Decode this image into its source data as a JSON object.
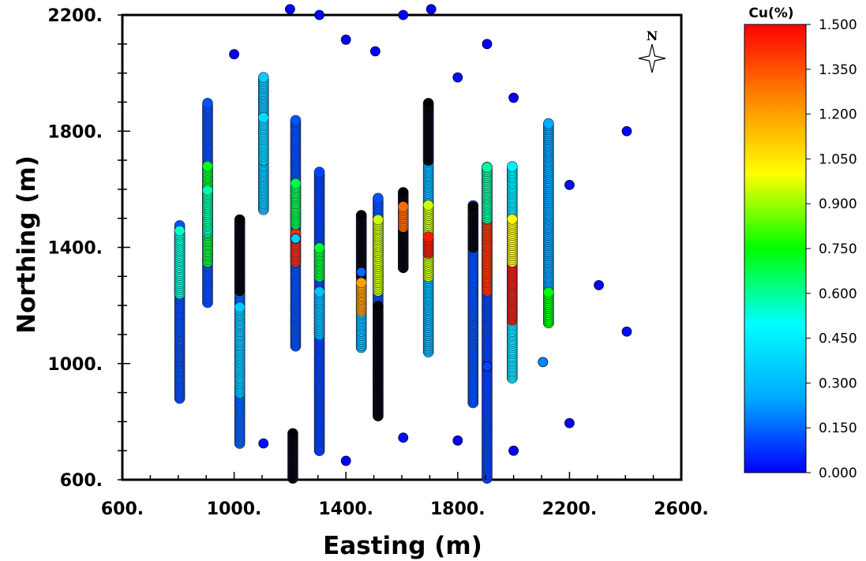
{
  "chart_data": {
    "type": "scatter",
    "xlabel": "Easting (m)",
    "ylabel": "Northing (m)",
    "xlim": [
      600,
      2600
    ],
    "ylim": [
      600,
      2200
    ],
    "x_ticks": [
      "600.",
      "1000.",
      "1400.",
      "1800.",
      "2200.",
      "2600."
    ],
    "x_tick_values": [
      600,
      1000,
      1400,
      1800,
      2200,
      2600
    ],
    "y_ticks": [
      "600.",
      "1000.",
      "1400.",
      "1800.",
      "2200."
    ],
    "y_tick_values": [
      600,
      1000,
      1400,
      1800,
      2200
    ],
    "north_arrow_label": "N",
    "colorbar": {
      "title": "Cu(%)",
      "min": 0.0,
      "max": 1.5,
      "labels": [
        "1.500",
        "1.350",
        "1.200",
        "1.050",
        "0.900",
        "0.750",
        "0.600",
        "0.450",
        "0.300",
        "0.150",
        "0.000"
      ],
      "label_values": [
        1.5,
        1.35,
        1.2,
        1.05,
        0.9,
        0.75,
        0.6,
        0.45,
        0.3,
        0.15,
        0.0
      ],
      "colors": [
        "#0000ff",
        "#00aaff",
        "#00ffff",
        "#00ff00",
        "#ffff00",
        "#ff8800",
        "#ff0000"
      ]
    },
    "no_data_color": "#000000",
    "drillholes": [
      {
        "easting": 805,
        "segments": [
          [
            880,
            1480,
            0.12
          ],
          [
            1240,
            1460,
            0.55
          ]
        ]
      },
      {
        "easting": 905,
        "segments": [
          [
            1210,
            1900,
            0.12
          ],
          [
            1350,
            1680,
            0.72
          ],
          [
            1450,
            1600,
            0.6
          ]
        ]
      },
      {
        "easting": 1020,
        "segments": [
          [
            725,
            1500,
            0.15
          ],
          [
            1250,
            1500,
            "nd"
          ],
          [
            900,
            1200,
            0.35
          ]
        ]
      },
      {
        "easting": 1105,
        "segments": [
          [
            1530,
            1985,
            0.35
          ],
          [
            1700,
            1850,
            0.4
          ]
        ]
      },
      {
        "easting": 1220,
        "segments": [
          [
            1060,
            1840,
            0.12
          ],
          [
            1350,
            1450,
            1.42
          ],
          [
            1480,
            1620,
            0.68
          ]
        ]
      },
      {
        "easting": 1305,
        "segments": [
          [
            700,
            1660,
            0.1
          ],
          [
            1300,
            1400,
            0.7
          ],
          [
            1100,
            1250,
            0.32
          ]
        ]
      },
      {
        "easting": 1210,
        "segments": [
          [
            605,
            760,
            "nd"
          ]
        ]
      },
      {
        "easting": 1455,
        "segments": [
          [
            1055,
            1510,
            0.32
          ],
          [
            1300,
            1510,
            "nd"
          ],
          [
            1180,
            1280,
            1.2
          ]
        ]
      },
      {
        "easting": 1515,
        "segments": [
          [
            820,
            1575,
            0.12
          ],
          [
            820,
            1200,
            "nd"
          ],
          [
            1250,
            1500,
            0.95
          ]
        ]
      },
      {
        "easting": 1605,
        "segments": [
          [
            1330,
            1590,
            "nd"
          ],
          [
            1470,
            1540,
            1.3
          ]
        ]
      },
      {
        "easting": 1695,
        "segments": [
          [
            1040,
            1900,
            0.3
          ],
          [
            1300,
            1550,
            0.95
          ],
          [
            1380,
            1440,
            1.45
          ],
          [
            1700,
            1900,
            "nd"
          ]
        ]
      },
      {
        "easting": 1855,
        "segments": [
          [
            865,
            1545,
            0.12
          ],
          [
            1400,
            1545,
            "nd"
          ]
        ]
      },
      {
        "easting": 1905,
        "segments": [
          [
            605,
            1680,
            0.1
          ],
          [
            1250,
            1500,
            1.4
          ],
          [
            1500,
            1680,
            0.6
          ]
        ]
      },
      {
        "easting": 1995,
        "segments": [
          [
            950,
            1680,
            0.45
          ],
          [
            1150,
            1350,
            1.45
          ],
          [
            1350,
            1500,
            1.0
          ]
        ]
      },
      {
        "easting": 2125,
        "segments": [
          [
            1140,
            1830,
            0.25
          ],
          [
            1140,
            1250,
            0.75
          ]
        ]
      }
    ],
    "points": [
      {
        "easting": 1200,
        "northing": 2220,
        "cu": 0.0
      },
      {
        "easting": 1305,
        "northing": 2200,
        "cu": 0.0
      },
      {
        "easting": 1605,
        "northing": 2200,
        "cu": 0.0
      },
      {
        "easting": 1705,
        "northing": 2220,
        "cu": 0.0
      },
      {
        "easting": 1400,
        "northing": 2115,
        "cu": 0.0
      },
      {
        "easting": 1505,
        "northing": 2075,
        "cu": 0.0
      },
      {
        "easting": 1905,
        "northing": 2100,
        "cu": 0.0
      },
      {
        "easting": 1000,
        "northing": 2065,
        "cu": 0.0
      },
      {
        "easting": 1800,
        "northing": 1985,
        "cu": 0.02
      },
      {
        "easting": 2000,
        "northing": 1915,
        "cu": 0.0
      },
      {
        "easting": 2405,
        "northing": 1800,
        "cu": 0.0
      },
      {
        "easting": 2200,
        "northing": 1615,
        "cu": 0.02
      },
      {
        "easting": 2305,
        "northing": 1270,
        "cu": 0.0
      },
      {
        "easting": 2405,
        "northing": 1110,
        "cu": 0.02
      },
      {
        "easting": 2105,
        "northing": 1005,
        "cu": 0.2
      },
      {
        "easting": 2200,
        "northing": 795,
        "cu": 0.0
      },
      {
        "easting": 2000,
        "northing": 700,
        "cu": 0.0
      },
      {
        "easting": 1800,
        "northing": 735,
        "cu": 0.0
      },
      {
        "easting": 1605,
        "northing": 745,
        "cu": 0.02
      },
      {
        "easting": 1105,
        "northing": 725,
        "cu": 0.02
      },
      {
        "easting": 1400,
        "northing": 665,
        "cu": 0.0
      },
      {
        "easting": 1220,
        "northing": 1430,
        "cu": 0.35
      },
      {
        "easting": 1455,
        "northing": 1315,
        "cu": 0.15
      },
      {
        "easting": 1905,
        "northing": 990,
        "cu": 0.1
      }
    ]
  }
}
